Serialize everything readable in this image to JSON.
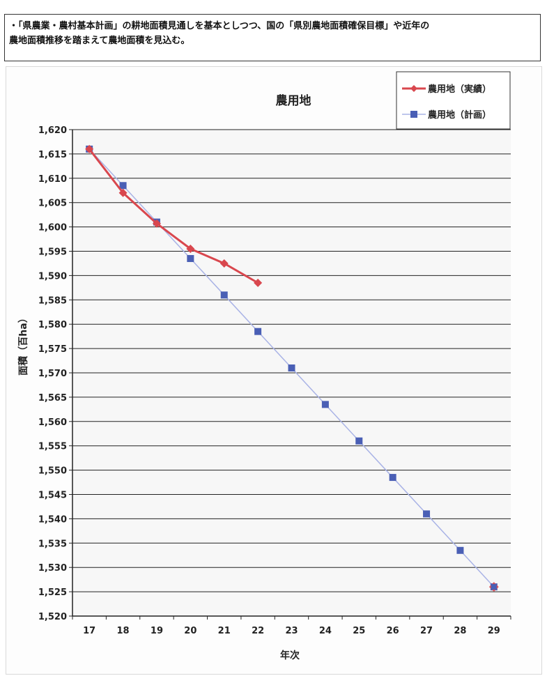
{
  "note": {
    "line1": "・「県農業・農村基本計画」の耕地面積見通しを基本としつつ、国の「県別農地面積確保目標」や近年の",
    "line2": "農地面積推移を踏まえて農地面積を見込む。"
  },
  "chart_data": {
    "type": "line",
    "title": "農用地",
    "xlabel": "年次",
    "ylabel": "面積（百ha）",
    "categories": [
      "17",
      "18",
      "19",
      "20",
      "21",
      "22",
      "23",
      "24",
      "25",
      "26",
      "27",
      "28",
      "29"
    ],
    "ylim": [
      1520,
      1620
    ],
    "yticks": [
      1520,
      1525,
      1530,
      1535,
      1540,
      1545,
      1550,
      1555,
      1560,
      1565,
      1570,
      1575,
      1580,
      1585,
      1590,
      1595,
      1600,
      1605,
      1610,
      1615,
      1620
    ],
    "ytick_labels": [
      "1,520",
      "1,525",
      "1,530",
      "1,535",
      "1,540",
      "1,545",
      "1,550",
      "1,555",
      "1,560",
      "1,565",
      "1,570",
      "1,575",
      "1,580",
      "1,585",
      "1,590",
      "1,595",
      "1,600",
      "1,605",
      "1,610",
      "1,615",
      "1,620"
    ],
    "grid": true,
    "legend_position": "top-right",
    "series": [
      {
        "name": "農用地（実績）",
        "color": "#d9474e",
        "marker": "diamond",
        "x": [
          "17",
          "18",
          "19",
          "20",
          "21",
          "22"
        ],
        "values": [
          1616,
          1607,
          1600.7,
          1595.5,
          1592.5,
          1588.5
        ]
      },
      {
        "name": "農用地（計画）",
        "color": "#4a5fb5",
        "line_color": "#a9b3e6",
        "marker": "square",
        "x": [
          "17",
          "18",
          "19",
          "20",
          "21",
          "22",
          "23",
          "24",
          "25",
          "26",
          "27",
          "28",
          "29"
        ],
        "values": [
          1616,
          1608.5,
          1601,
          1593.5,
          1586,
          1578.5,
          1571,
          1563.5,
          1556,
          1548.5,
          1541,
          1533.5,
          1526
        ]
      }
    ],
    "endpoint_overlay": {
      "x": "29",
      "value": 1526,
      "color": "#d9474e"
    }
  }
}
